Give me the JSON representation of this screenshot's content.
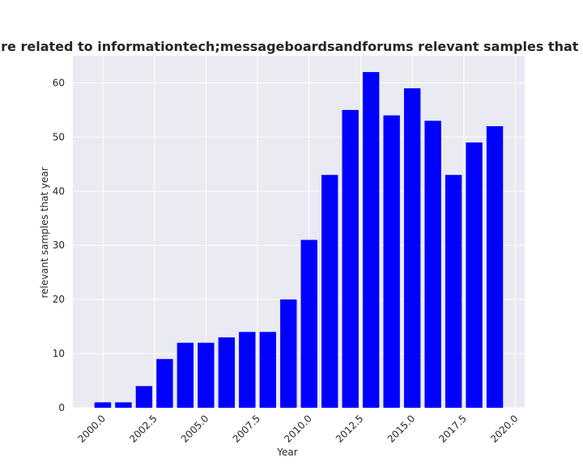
{
  "chart_data": {
    "type": "bar",
    "title": "Number of samples are related to informationtech;messageboardsandforums relevant samples that year in privacy policies",
    "xlabel": "Year",
    "ylabel": "relevant samples that year",
    "x": [
      2000,
      2001,
      2002,
      2003,
      2004,
      2005,
      2006,
      2007,
      2008,
      2009,
      2010,
      2011,
      2012,
      2013,
      2014,
      2015,
      2016,
      2017,
      2018,
      2019
    ],
    "values": [
      1,
      1,
      4,
      9,
      12,
      12,
      13,
      14,
      14,
      20,
      31,
      43,
      55,
      62,
      54,
      59,
      53,
      43,
      49,
      52
    ],
    "xlim": [
      1998.55,
      2020.45
    ],
    "ylim": [
      0,
      65
    ],
    "xticks": [
      "2000.0",
      "2002.5",
      "2005.0",
      "2007.5",
      "2010.0",
      "2012.5",
      "2015.0",
      "2017.5",
      "2020.0"
    ],
    "yticks": [
      "0",
      "10",
      "20",
      "30",
      "40",
      "50",
      "60"
    ],
    "bar_color": "#0000ff",
    "background_color": "#eaeaf2",
    "grid": true,
    "legend": "none"
  }
}
